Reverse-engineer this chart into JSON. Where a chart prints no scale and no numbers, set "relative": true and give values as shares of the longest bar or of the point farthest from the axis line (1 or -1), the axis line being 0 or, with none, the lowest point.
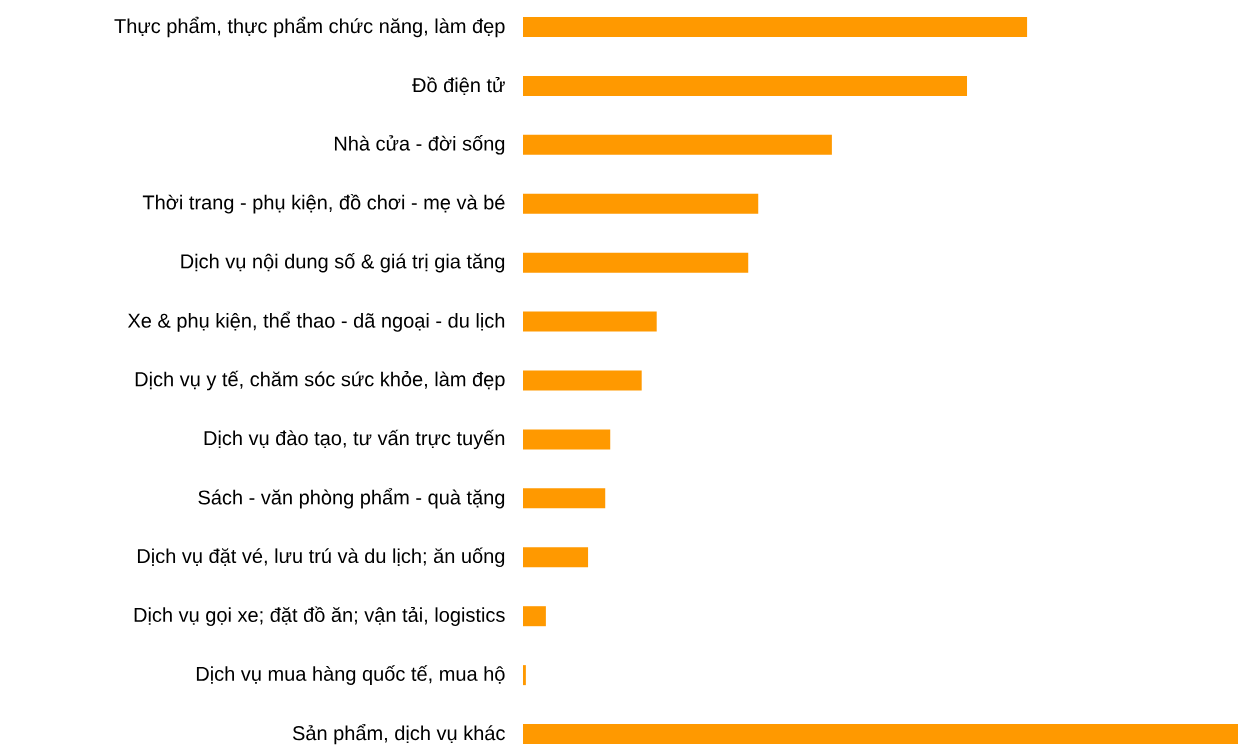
{
  "chart_data": {
    "type": "bar",
    "orientation": "horizontal",
    "relative": true,
    "color": "#ff9900",
    "categories": [
      "Thực phẩm, thực phẩm chức năng, làm đẹp",
      "Đồ điện tử",
      "Nhà cửa - đời sống",
      "Thời trang - phụ kiện, đồ chơi - mẹ và bé",
      "Dịch vụ nội dung số & giá trị gia tăng",
      "Xe & phụ kiện, thể thao - dã ngoại - du lịch",
      "Dịch vụ y tế, chăm sóc sức khỏe, làm đẹp",
      "Dịch vụ đào tạo, tư vấn trực tuyến",
      "Sách - văn phòng phẩm - quà tặng",
      "Dịch vụ đặt vé, lưu trú và du lịch; ăn uống",
      "Dịch vụ gọi xe; đặt đồ ăn; vận tải, logistics",
      "Dịch vụ mua hàng quốc tế, mua hộ",
      "Sản phẩm, dịch vụ khác"
    ],
    "values": [
      0.705,
      0.621,
      0.432,
      0.329,
      0.315,
      0.187,
      0.166,
      0.122,
      0.115,
      0.091,
      0.032,
      0.004,
      1
    ]
  }
}
